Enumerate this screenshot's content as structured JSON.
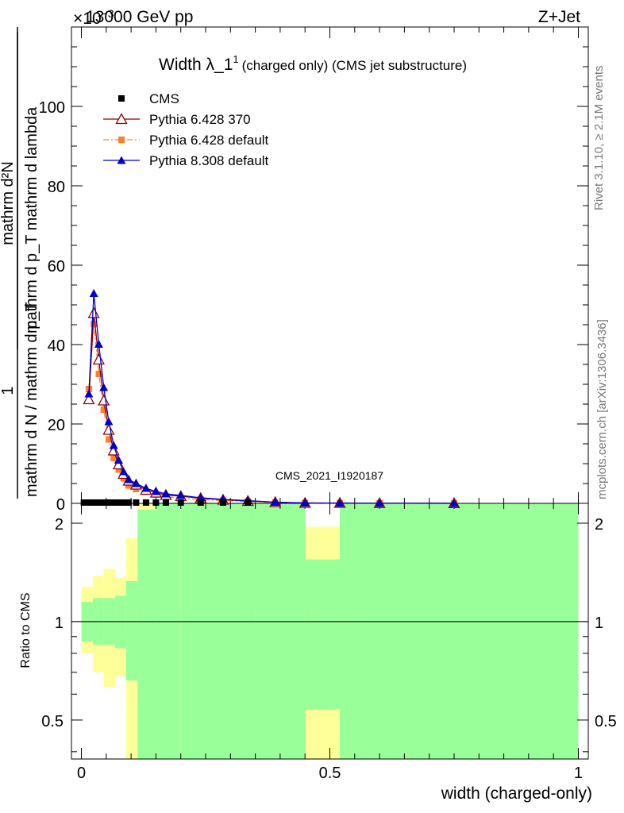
{
  "header": {
    "energy": "13000 GeV pp",
    "process": "Z+Jet",
    "exponent": "×10",
    "exponent_power": "−3"
  },
  "side_text": {
    "rivet": "Rivet 3.1.10, ≥ 2.1M events",
    "mcplots": "mcplots.cern.ch [arXiv:1306.3436]"
  },
  "analysis_id": "CMS_2021_I1920187",
  "chart_data": [
    {
      "type": "line",
      "title": "Width λ_1^1 (charged only) (CMS jet substructure)",
      "title_parts": {
        "main": "Width λ_1",
        "sup": "1",
        "rest": "(charged only) (CMS jet substructure)"
      },
      "ylabel_parts": {
        "numerator": "mathrm d²N",
        "denominator": "mathrm d p_T mathrm d lambda",
        "prefix_numerator": "1",
        "prefix_denominator": "mathrm d N / mathrm d p_T"
      },
      "ylabel": "1 / (mathrm d N / mathrm d p_T) · mathrm d²N / (mathrm d p_T mathrm d lambda)",
      "xlim": [
        -0.02,
        1.02
      ],
      "ylim": [
        0,
        0.12
      ],
      "y_scale_factor": 0.001,
      "y_ticks": [
        0,
        20,
        40,
        60,
        80,
        100
      ],
      "x": [
        0.005,
        0.015,
        0.025,
        0.035,
        0.045,
        0.055,
        0.065,
        0.075,
        0.085,
        0.095,
        0.11,
        0.13,
        0.15,
        0.17,
        0.2,
        0.24,
        0.285,
        0.335,
        0.39,
        0.45,
        0.52,
        0.6,
        0.75
      ],
      "legend_position": "top-left",
      "series": [
        {
          "name": "CMS",
          "color": "#000000",
          "marker": "square",
          "line": "none",
          "values": [
            0.0002,
            0.0002,
            0.0002,
            0.0002,
            0.0002,
            0.0002,
            0.0002,
            0.0002,
            0.0002,
            0.0002,
            0.0002,
            0.0002,
            0.0002,
            0.0002,
            0.0002,
            0.0002,
            0.0002,
            0.0002,
            null,
            null,
            null,
            null,
            null
          ]
        },
        {
          "name": "Pythia 6.428 370",
          "color": "#8b0000",
          "marker": "open-triangle",
          "line": "solid",
          "values": [
            null,
            0.0262,
            0.0479,
            0.0362,
            0.0259,
            0.0185,
            0.0133,
            0.0098,
            0.0074,
            0.0057,
            0.0047,
            0.0034,
            0.0027,
            0.0021,
            0.0018,
            0.0013,
            0.0009,
            0.0006,
            0.0003,
            0.0001,
            0.0001,
            5e-05,
            2e-05
          ]
        },
        {
          "name": "Pythia 6.428 default",
          "color": "#ff7f2a",
          "marker": "filled-square",
          "line": "dash-dot",
          "values": [
            null,
            0.0288,
            0.0452,
            0.0326,
            0.0236,
            0.0161,
            0.0114,
            0.0085,
            0.0063,
            0.0045,
            0.0036,
            0.0029,
            0.0022,
            0.0017,
            0.0013,
            0.001,
            0.0007,
            0.0005,
            0.0002,
            0.0001,
            5e-05,
            3e-05,
            1e-05
          ]
        },
        {
          "name": "Pythia 8.308 default",
          "color": "#0000cc",
          "marker": "filled-triangle",
          "line": "solid",
          "values": [
            null,
            0.0276,
            0.0529,
            0.0401,
            0.0292,
            0.0206,
            0.0146,
            0.0109,
            0.008,
            0.006,
            0.005,
            0.0038,
            0.003,
            0.0024,
            0.002,
            0.0014,
            0.001,
            0.0007,
            0.0003,
            0.0001,
            5e-05,
            3e-05,
            1e-05
          ]
        }
      ]
    },
    {
      "type": "area",
      "ylabel": "Ratio to CMS",
      "xlabel": "width (charged-only)",
      "xlim": [
        -0.02,
        1.02
      ],
      "x_ticks": [
        0,
        0.5,
        1
      ],
      "x_tick_labels": [
        "0",
        "0.5",
        "1"
      ],
      "y_ticks": [
        0.5,
        1,
        2
      ],
      "y_tick_labels": [
        "0.5",
        "1",
        "2"
      ],
      "ylim": [
        0.38,
        2.3
      ],
      "y_scale": "log",
      "reference_line": 1,
      "bands": [
        {
          "name": "stat",
          "color": "#99ff99"
        },
        {
          "name": "stat+syst",
          "color": "#ffff99"
        }
      ],
      "band_bins": [
        {
          "lo": 0.0,
          "hi": 0.023,
          "yin_lo": 0.87,
          "yin_hi": 1.15,
          "yout_lo": 0.8,
          "yout_hi": 1.28
        },
        {
          "lo": 0.023,
          "hi": 0.045,
          "yin_lo": 0.85,
          "yin_hi": 1.18,
          "yout_lo": 0.7,
          "yout_hi": 1.38
        },
        {
          "lo": 0.045,
          "hi": 0.068,
          "yin_lo": 0.85,
          "yin_hi": 1.18,
          "yout_lo": 0.63,
          "yout_hi": 1.45
        },
        {
          "lo": 0.068,
          "hi": 0.09,
          "yin_lo": 0.83,
          "yin_hi": 1.2,
          "yout_lo": 0.68,
          "yout_hi": 1.36
        },
        {
          "lo": 0.09,
          "hi": 0.113,
          "yin_lo": 0.66,
          "yin_hi": 1.33,
          "yout_lo": 0.38,
          "yout_hi": 1.8
        },
        {
          "lo": 0.113,
          "hi": 0.15,
          "yin_lo": 0.38,
          "yin_hi": 2.2,
          "yout_lo": 0.38,
          "yout_hi": 2.3
        },
        {
          "lo": 0.15,
          "hi": 0.2,
          "yin_lo": 0.38,
          "yin_hi": 2.3,
          "yout_lo": 0.38,
          "yout_hi": 2.3
        },
        {
          "lo": 0.2,
          "hi": 0.35,
          "yin_lo": 0.38,
          "yin_hi": 2.3,
          "yout_lo": 0.38,
          "yout_hi": 2.3
        },
        {
          "lo": 0.35,
          "hi": 0.45,
          "yin_lo": 0.38,
          "yin_hi": 2.3,
          "yout_lo": 0.38,
          "yout_hi": 2.3
        },
        {
          "lo": 0.45,
          "hi": 0.52,
          "yin_lo": 0.54,
          "yin_hi": 1.55,
          "yout_lo": 0.38,
          "yout_hi": 1.95
        },
        {
          "lo": 0.52,
          "hi": 1.0,
          "yin_lo": 0.38,
          "yin_hi": 2.3,
          "yout_lo": 0.38,
          "yout_hi": 2.3
        }
      ]
    }
  ]
}
